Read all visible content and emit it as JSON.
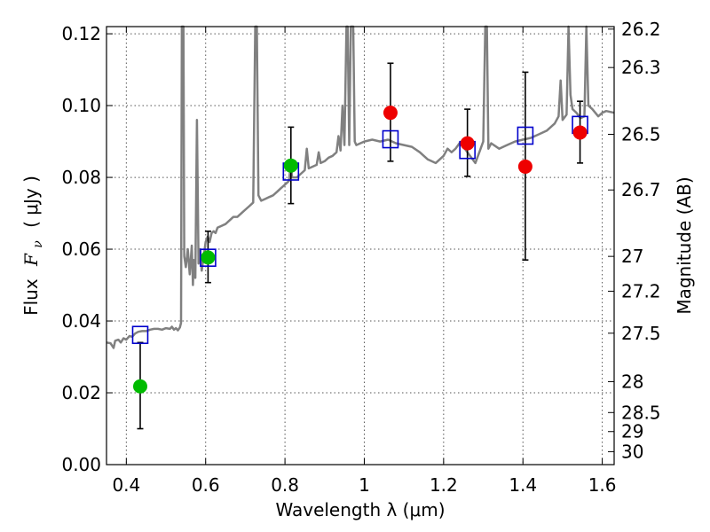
{
  "chart_data": {
    "type": "scatter",
    "xlabel": "Wavelength  λ (μm)",
    "ylabel_text": "Flux",
    "ylabel_symbol": "F",
    "ylabel_sub": "ν",
    "ylabel_unit": "( μJy )",
    "y2label": "Magnitude (AB)",
    "xlim": [
      0.35,
      1.63
    ],
    "ylim": [
      0.0,
      0.122
    ],
    "grid": true,
    "legend": "none",
    "x_ticks": [
      0.4,
      0.6,
      0.8,
      1.0,
      1.2,
      1.4,
      1.6
    ],
    "x_tick_labels": [
      "0.4",
      "0.6",
      "0.8",
      "1",
      "1.2",
      "1.4",
      "1.6"
    ],
    "y_ticks": [
      0.0,
      0.02,
      0.04,
      0.06,
      0.08,
      0.1,
      0.12
    ],
    "y_tick_labels": [
      "0.00",
      "0.02",
      "0.04",
      "0.06",
      "0.08",
      "0.10",
      "0.12"
    ],
    "mag_ticks": [
      {
        "label": "26.2",
        "flux": 0.1213
      },
      {
        "label": "26.3",
        "flux": 0.1106
      },
      {
        "label": "26.5",
        "flux": 0.092
      },
      {
        "label": "26.7",
        "flux": 0.0765
      },
      {
        "label": "27",
        "flux": 0.058
      },
      {
        "label": "27.2",
        "flux": 0.0483
      },
      {
        "label": "27.5",
        "flux": 0.0366
      },
      {
        "label": "28",
        "flux": 0.0231
      },
      {
        "label": "28.5",
        "flux": 0.0145
      },
      {
        "label": "29",
        "flux": 0.0092
      },
      {
        "label": "30",
        "flux": 0.0036
      }
    ],
    "colors": {
      "spectrum": "#808080",
      "green": "#00bb00",
      "red": "#ee0000",
      "model": "#0000cc",
      "errorbar": "#000000"
    },
    "series": [
      {
        "marker": "circle",
        "color": "#00bb00",
        "points": [
          {
            "x": 0.435,
            "y": 0.0218,
            "ylo": 0.01,
            "yhi": 0.034
          },
          {
            "x": 0.606,
            "y": 0.0577,
            "ylo": 0.0507,
            "yhi": 0.065
          },
          {
            "x": 0.815,
            "y": 0.0833,
            "ylo": 0.0727,
            "yhi": 0.094
          }
        ]
      },
      {
        "marker": "circle",
        "color": "#ee0000",
        "points": [
          {
            "x": 1.066,
            "y": 0.098,
            "ylo": 0.0845,
            "yhi": 0.1118
          },
          {
            "x": 1.26,
            "y": 0.0895,
            "ylo": 0.0803,
            "yhi": 0.099
          },
          {
            "x": 1.406,
            "y": 0.083,
            "ylo": 0.057,
            "yhi": 0.1093
          },
          {
            "x": 1.544,
            "y": 0.0925,
            "ylo": 0.084,
            "yhi": 0.1012
          }
        ]
      },
      {
        "marker": "square-open",
        "color": "#0000cc",
        "points": [
          {
            "x": 0.435,
            "y": 0.036
          },
          {
            "x": 0.606,
            "y": 0.0575
          },
          {
            "x": 0.815,
            "y": 0.0815
          },
          {
            "x": 1.066,
            "y": 0.0905
          },
          {
            "x": 1.26,
            "y": 0.0875
          },
          {
            "x": 1.406,
            "y": 0.0915
          },
          {
            "x": 1.544,
            "y": 0.0945
          }
        ]
      },
      {
        "marker": "line",
        "color": "#808080",
        "points": [
          [
            0.35,
            0.034
          ],
          [
            0.36,
            0.0338
          ],
          [
            0.368,
            0.0325
          ],
          [
            0.372,
            0.0345
          ],
          [
            0.38,
            0.0348
          ],
          [
            0.386,
            0.034
          ],
          [
            0.393,
            0.0352
          ],
          [
            0.4,
            0.0348
          ],
          [
            0.408,
            0.0358
          ],
          [
            0.415,
            0.0356
          ],
          [
            0.422,
            0.0365
          ],
          [
            0.43,
            0.037
          ],
          [
            0.44,
            0.0372
          ],
          [
            0.45,
            0.0372
          ],
          [
            0.46,
            0.0376
          ],
          [
            0.47,
            0.0378
          ],
          [
            0.48,
            0.0378
          ],
          [
            0.49,
            0.0376
          ],
          [
            0.5,
            0.038
          ],
          [
            0.51,
            0.0378
          ],
          [
            0.515,
            0.0384
          ],
          [
            0.52,
            0.0376
          ],
          [
            0.525,
            0.038
          ],
          [
            0.53,
            0.0374
          ],
          [
            0.535,
            0.0382
          ],
          [
            0.538,
            0.0395
          ],
          [
            0.54,
            0.122
          ],
          [
            0.544,
            0.122
          ],
          [
            0.546,
            0.058
          ],
          [
            0.55,
            0.055
          ],
          [
            0.555,
            0.06
          ],
          [
            0.56,
            0.053
          ],
          [
            0.565,
            0.061
          ],
          [
            0.568,
            0.05
          ],
          [
            0.57,
            0.057
          ],
          [
            0.574,
            0.052
          ],
          [
            0.578,
            0.096
          ],
          [
            0.582,
            0.056
          ],
          [
            0.586,
            0.06
          ],
          [
            0.59,
            0.054
          ],
          [
            0.595,
            0.058
          ],
          [
            0.6,
            0.062
          ],
          [
            0.605,
            0.0635
          ],
          [
            0.61,
            0.062
          ],
          [
            0.615,
            0.0645
          ],
          [
            0.62,
            0.065
          ],
          [
            0.625,
            0.0645
          ],
          [
            0.63,
            0.066
          ],
          [
            0.64,
            0.0665
          ],
          [
            0.65,
            0.067
          ],
          [
            0.66,
            0.068
          ],
          [
            0.67,
            0.069
          ],
          [
            0.68,
            0.069
          ],
          [
            0.69,
            0.07
          ],
          [
            0.7,
            0.071
          ],
          [
            0.71,
            0.072
          ],
          [
            0.72,
            0.073
          ],
          [
            0.725,
            0.122
          ],
          [
            0.729,
            0.122
          ],
          [
            0.733,
            0.075
          ],
          [
            0.74,
            0.0735
          ],
          [
            0.75,
            0.074
          ],
          [
            0.76,
            0.0745
          ],
          [
            0.77,
            0.075
          ],
          [
            0.78,
            0.076
          ],
          [
            0.79,
            0.077
          ],
          [
            0.8,
            0.078
          ],
          [
            0.81,
            0.079
          ],
          [
            0.815,
            0.084
          ],
          [
            0.818,
            0.08
          ],
          [
            0.83,
            0.08
          ],
          [
            0.84,
            0.081
          ],
          [
            0.85,
            0.082
          ],
          [
            0.855,
            0.088
          ],
          [
            0.86,
            0.0825
          ],
          [
            0.87,
            0.083
          ],
          [
            0.88,
            0.0835
          ],
          [
            0.885,
            0.087
          ],
          [
            0.89,
            0.084
          ],
          [
            0.9,
            0.0845
          ],
          [
            0.91,
            0.0855
          ],
          [
            0.92,
            0.086
          ],
          [
            0.93,
            0.087
          ],
          [
            0.935,
            0.0915
          ],
          [
            0.94,
            0.0875
          ],
          [
            0.945,
            0.1
          ],
          [
            0.95,
            0.089
          ],
          [
            0.955,
            0.122
          ],
          [
            0.958,
            0.122
          ],
          [
            0.962,
            0.089
          ],
          [
            0.966,
            0.122
          ],
          [
            0.972,
            0.122
          ],
          [
            0.976,
            0.09
          ],
          [
            0.98,
            0.089
          ],
          [
            0.99,
            0.0895
          ],
          [
            1.0,
            0.09
          ],
          [
            1.02,
            0.0905
          ],
          [
            1.04,
            0.09
          ],
          [
            1.06,
            0.0905
          ],
          [
            1.08,
            0.0895
          ],
          [
            1.1,
            0.089
          ],
          [
            1.12,
            0.0885
          ],
          [
            1.14,
            0.087
          ],
          [
            1.16,
            0.085
          ],
          [
            1.18,
            0.084
          ],
          [
            1.2,
            0.086
          ],
          [
            1.21,
            0.088
          ],
          [
            1.22,
            0.087
          ],
          [
            1.23,
            0.088
          ],
          [
            1.24,
            0.0895
          ],
          [
            1.25,
            0.0885
          ],
          [
            1.26,
            0.087
          ],
          [
            1.27,
            0.0855
          ],
          [
            1.28,
            0.084
          ],
          [
            1.29,
            0.087
          ],
          [
            1.3,
            0.09
          ],
          [
            1.305,
            0.122
          ],
          [
            1.309,
            0.122
          ],
          [
            1.313,
            0.088
          ],
          [
            1.32,
            0.0895
          ],
          [
            1.34,
            0.088
          ],
          [
            1.36,
            0.089
          ],
          [
            1.38,
            0.09
          ],
          [
            1.4,
            0.0905
          ],
          [
            1.42,
            0.091
          ],
          [
            1.44,
            0.092
          ],
          [
            1.46,
            0.093
          ],
          [
            1.48,
            0.095
          ],
          [
            1.49,
            0.097
          ],
          [
            1.495,
            0.107
          ],
          [
            1.5,
            0.096
          ],
          [
            1.51,
            0.0975
          ],
          [
            1.515,
            0.122
          ],
          [
            1.52,
            0.103
          ],
          [
            1.525,
            0.099
          ],
          [
            1.535,
            0.098
          ],
          [
            1.545,
            0.0965
          ],
          [
            1.555,
            0.097
          ],
          [
            1.56,
            0.122
          ],
          [
            1.565,
            0.1
          ],
          [
            1.575,
            0.099
          ],
          [
            1.59,
            0.097
          ],
          [
            1.6,
            0.098
          ],
          [
            1.61,
            0.0985
          ],
          [
            1.63,
            0.098
          ]
        ]
      }
    ]
  }
}
